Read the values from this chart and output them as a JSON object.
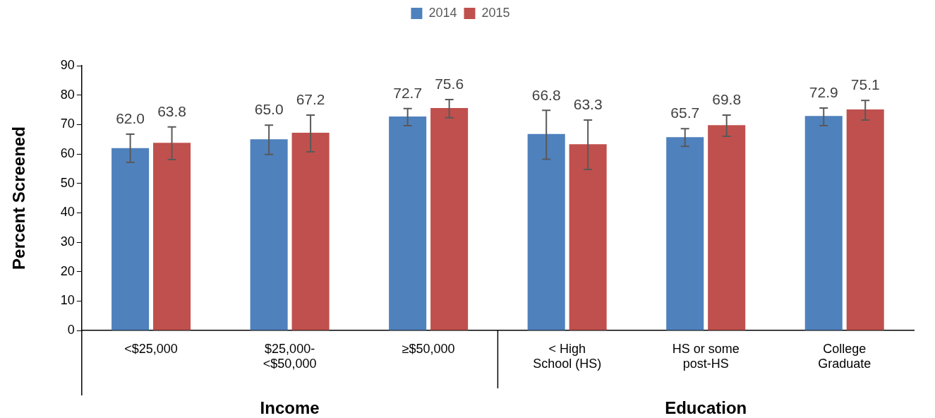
{
  "chart_data": {
    "type": "bar",
    "categories": [
      "<$25,000",
      "$25,000-<$50,000",
      "≥$50,000",
      "< High School (HS)",
      "HS or some post-HS",
      "College Graduate"
    ],
    "series": [
      {
        "name": "2014",
        "color": "#4f81bd",
        "values": [
          62.0,
          65.0,
          72.7,
          66.8,
          65.7,
          72.9
        ],
        "value_labels": [
          "62.0",
          "65.0",
          "72.7",
          "66.8",
          "65.7",
          "72.9"
        ],
        "errors": [
          [
            57.1,
            66.7
          ],
          [
            59.8,
            69.8
          ],
          [
            69.6,
            75.4
          ],
          [
            58.2,
            74.8
          ],
          [
            62.6,
            68.6
          ],
          [
            69.6,
            75.6
          ]
        ]
      },
      {
        "name": "2015",
        "color": "#c0504d",
        "values": [
          63.8,
          67.2,
          75.6,
          63.3,
          69.8,
          75.1
        ],
        "value_labels": [
          "63.8",
          "67.2",
          "75.6",
          "63.3",
          "69.8",
          "75.1"
        ],
        "errors": [
          [
            58.1,
            69.2
          ],
          [
            60.7,
            73.2
          ],
          [
            72.3,
            78.5
          ],
          [
            54.7,
            71.5
          ],
          [
            66.0,
            73.2
          ],
          [
            71.5,
            78.2
          ]
        ]
      }
    ],
    "ylabel": "Percent Screened",
    "ylim": [
      0,
      90
    ],
    "yticks": [
      0,
      10,
      20,
      30,
      40,
      50,
      60,
      70,
      80,
      90
    ],
    "grid": false,
    "legend": "top",
    "annotations": [
      "Income",
      "Education"
    ]
  }
}
